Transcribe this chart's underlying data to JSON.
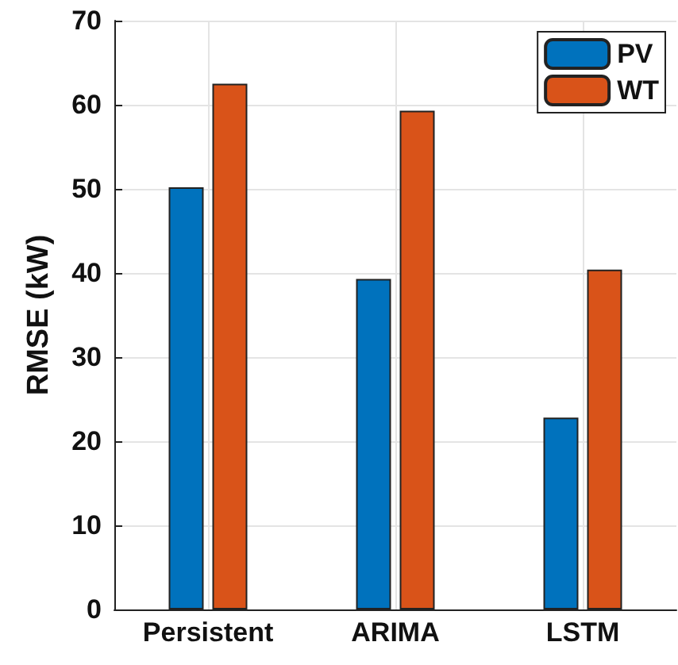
{
  "chart_data": {
    "type": "bar",
    "ylabel": "RMSE (kW)",
    "categories": [
      "Persistent",
      "ARIMA",
      "LSTM"
    ],
    "series": [
      {
        "name": "PV",
        "color": "#0072bd",
        "values": [
          50.2,
          39.3,
          22.8
        ]
      },
      {
        "name": "WT",
        "color": "#d95319",
        "values": [
          62.5,
          59.3,
          40.4
        ]
      }
    ],
    "ylim": [
      0,
      70
    ],
    "yticks": [
      0,
      10,
      20,
      30,
      40,
      50,
      60,
      70
    ],
    "grid": true,
    "legend": "top right"
  }
}
